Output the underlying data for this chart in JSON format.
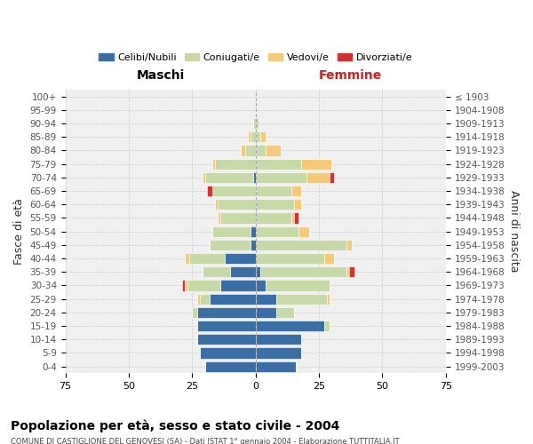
{
  "age_groups": [
    "0-4",
    "5-9",
    "10-14",
    "15-19",
    "20-24",
    "25-29",
    "30-34",
    "35-39",
    "40-44",
    "45-49",
    "50-54",
    "55-59",
    "60-64",
    "65-69",
    "70-74",
    "75-79",
    "80-84",
    "85-89",
    "90-94",
    "95-99",
    "100+"
  ],
  "birth_years": [
    "1999-2003",
    "1994-1998",
    "1989-1993",
    "1984-1988",
    "1979-1983",
    "1974-1978",
    "1969-1973",
    "1964-1968",
    "1959-1963",
    "1954-1958",
    "1949-1953",
    "1944-1948",
    "1939-1943",
    "1934-1938",
    "1929-1933",
    "1924-1928",
    "1919-1923",
    "1914-1918",
    "1909-1913",
    "1904-1908",
    "≤ 1903"
  ],
  "maschi": {
    "celibi": [
      20,
      22,
      23,
      23,
      23,
      18,
      14,
      10,
      12,
      2,
      2,
      0,
      0,
      0,
      1,
      0,
      0,
      0,
      0,
      0,
      0
    ],
    "coniugati": [
      0,
      0,
      0,
      0,
      2,
      4,
      13,
      11,
      14,
      16,
      15,
      14,
      15,
      17,
      19,
      16,
      4,
      2,
      1,
      0,
      0
    ],
    "vedovi": [
      0,
      0,
      0,
      0,
      0,
      1,
      1,
      0,
      2,
      0,
      0,
      1,
      1,
      0,
      1,
      1,
      2,
      1,
      0,
      0,
      0
    ],
    "divorziati": [
      0,
      0,
      0,
      0,
      0,
      0,
      1,
      0,
      0,
      0,
      0,
      0,
      0,
      2,
      0,
      0,
      0,
      0,
      0,
      0,
      0
    ]
  },
  "femmine": {
    "nubili": [
      16,
      18,
      18,
      27,
      8,
      8,
      4,
      2,
      0,
      0,
      0,
      0,
      0,
      0,
      0,
      0,
      0,
      0,
      0,
      0,
      0
    ],
    "coniugate": [
      0,
      0,
      0,
      2,
      7,
      20,
      25,
      34,
      27,
      36,
      17,
      14,
      15,
      14,
      20,
      18,
      4,
      2,
      1,
      0,
      0
    ],
    "vedove": [
      0,
      0,
      0,
      0,
      0,
      1,
      0,
      1,
      4,
      2,
      4,
      1,
      3,
      4,
      9,
      12,
      6,
      2,
      0,
      0,
      0
    ],
    "divorziate": [
      0,
      0,
      0,
      0,
      0,
      0,
      0,
      2,
      0,
      0,
      0,
      2,
      0,
      0,
      2,
      0,
      0,
      0,
      0,
      0,
      0
    ]
  },
  "colors": {
    "celibi": "#3b6ea5",
    "coniugati": "#c8d9a8",
    "vedovi": "#f5c97a",
    "divorziati": "#cc3333"
  },
  "xlim": 75,
  "title": "Popolazione per età, sesso e stato civile - 2004",
  "subtitle": "COMUNE DI CASTIGLIONE DEL GENOVESI (SA) - Dati ISTAT 1° gennaio 2004 - Elaborazione TUTTITALIA.IT",
  "xlabel_left": "Maschi",
  "xlabel_right": "Femmine",
  "ylabel_left": "Fasce di età",
  "ylabel_right": "Anni di nascita",
  "bg_color": "#ffffff",
  "grid_color": "#cccccc",
  "figsize": [
    6.0,
    5.0
  ],
  "dpi": 100
}
